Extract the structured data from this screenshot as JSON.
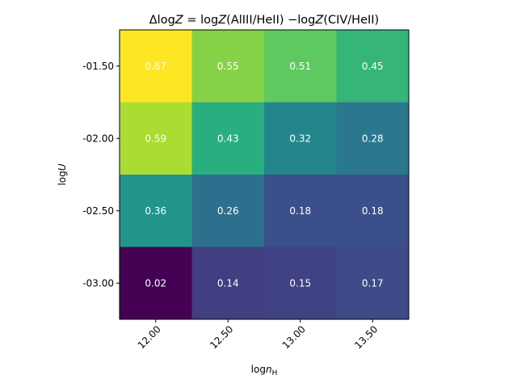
{
  "chart_data": {
    "type": "heatmap",
    "title": "ΔlogZ = logZ(AlIII/HeII)  −logZ(CIV/HeII)",
    "xlabel": "logn_H",
    "ylabel": "logU",
    "x_categories": [
      "12.00",
      "12.50",
      "13.00",
      "13.50"
    ],
    "y_categories": [
      "-01.50",
      "-02.00",
      "-02.50",
      "-03.00"
    ],
    "values": [
      [
        0.67,
        0.55,
        0.51,
        0.45
      ],
      [
        0.59,
        0.43,
        0.32,
        0.28
      ],
      [
        0.36,
        0.26,
        0.18,
        0.18
      ],
      [
        0.02,
        0.14,
        0.15,
        0.17
      ]
    ],
    "value_labels": [
      [
        "0.67",
        "0.55",
        "0.51",
        "0.45"
      ],
      [
        "0.59",
        "0.43",
        "0.32",
        "0.28"
      ],
      [
        "0.36",
        "0.26",
        "0.18",
        "0.18"
      ],
      [
        "0.02",
        "0.14",
        "0.15",
        "0.17"
      ]
    ],
    "colormap": "viridis",
    "vmin": 0.02,
    "vmax": 0.67
  }
}
